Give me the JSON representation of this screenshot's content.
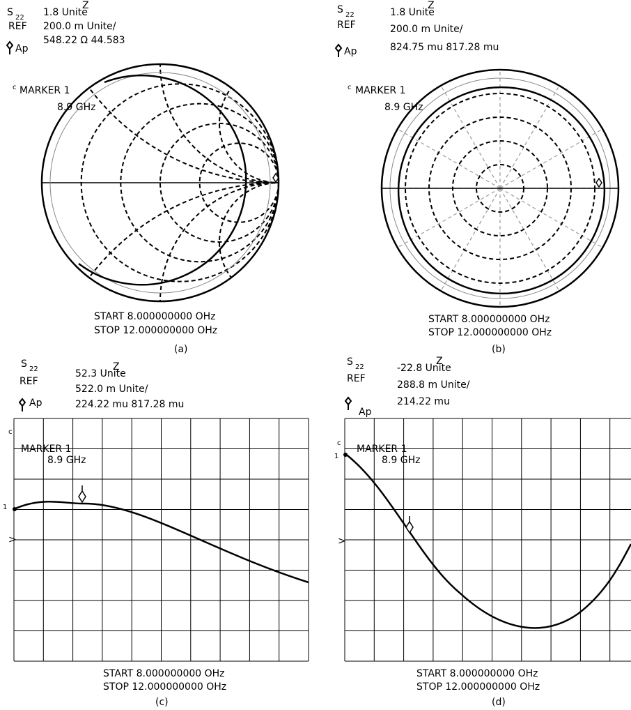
{
  "panels": [
    {
      "s": "S",
      "sub": "22",
      "ref": "REF",
      "ap": "Ap",
      "line1": "1.8 Unite",
      "sup": "Z",
      "line2": "200.0 m Unite/",
      "line3": "548.22 Ω  44.583",
      "c": "c",
      "marker": "MARKER 1",
      "freq": "8.9 GHz",
      "start": "START 8.000000000 OHz",
      "stop": "STOP 12.000000000 OHz",
      "caption": "(a)"
    },
    {
      "s": "S",
      "sub": "22",
      "ref": "REF",
      "ap": "Ap",
      "line1": "1.8 Unite",
      "sup": "Z",
      "line2": "200.0 m Unite/",
      "line3": "824.75 mu 817.28 mu",
      "c": "c",
      "marker": "MARKER 1",
      "freq": "8.9 GHz",
      "start": "START 8.000000000 OHz",
      "stop": "STOP 12.000000000 OHz",
      "caption": "(b)"
    },
    {
      "s": "S",
      "sub": "22",
      "ref": "REF",
      "ap": "Ap",
      "line1": "52.3 Unite",
      "sup": "Z",
      "line2": "522.0 m Unite/",
      "line3": "224.22 mu  817.28 mu",
      "c": "c",
      "marker": "MARKER 1",
      "freq": "8.9 GHz",
      "start": "START 8.000000000 OHz",
      "stop": "STOP 12.000000000 OHz",
      "caption": "(c)",
      "ref_mark": "1",
      "arrow": ">"
    },
    {
      "s": "S",
      "sub": "22",
      "ref": "REF",
      "ap": "Ap",
      "line1": "-22.8 Unite",
      "sup": "Z",
      "line2": "288.8 m Unite/",
      "line3": "214.22 mu",
      "c": "c",
      "marker": "MARKER 1",
      "freq": "8.9 GHz",
      "start": "START 8.000000000 OHz",
      "stop": "STOP 12.000000000 OHz",
      "caption": "(d)",
      "ref_mark": "1",
      "arrow": ">"
    }
  ]
}
